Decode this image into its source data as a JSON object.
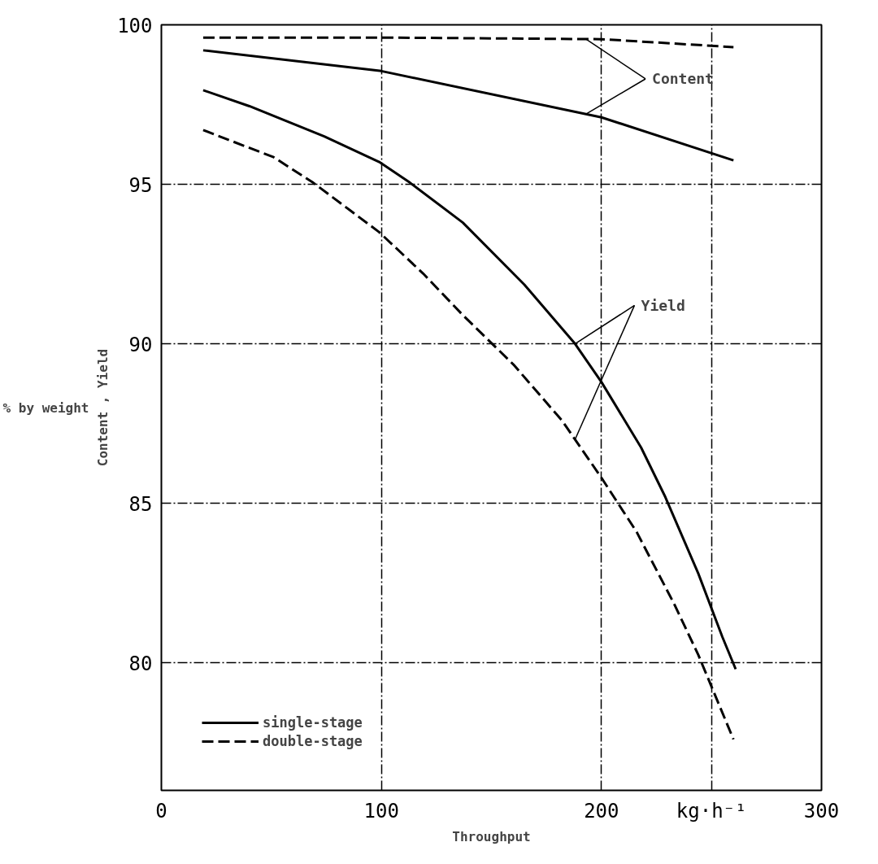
{
  "chart_data": {
    "type": "line",
    "xlabel": "Throughput",
    "ylabel": "Content , Yield",
    "xlim": [
      0,
      300
    ],
    "ylim": [
      76,
      100
    ],
    "xticks": [
      0,
      100,
      200,
      {
        "value": 250,
        "label": "kg·h⁻¹"
      },
      300
    ],
    "yticks": [
      80,
      85,
      90,
      95,
      100
    ],
    "grid": true,
    "legend": "bottom left",
    "annotations": [
      "% by weight",
      {
        "text": "Content",
        "x": 193,
        "y": 97.2
      },
      {
        "text": "Yield",
        "x": 188,
        "y": 87.1
      }
    ],
    "series": [
      {
        "name": "single-stage",
        "color": "#000000",
        "line_style": "solid",
        "x": [
          19,
          100,
          200,
          260
        ],
        "values": [
          99.2,
          98.55,
          97.1,
          95.75
        ]
      },
      {
        "name": "double-stage",
        "color": "#000000",
        "line_style": "dashed",
        "x": [
          19,
          100,
          200,
          260
        ],
        "values": [
          99.6,
          99.6,
          99.55,
          99.3
        ]
      },
      {
        "color": "#000000",
        "line_style": "solid",
        "x": [
          19,
          40,
          74,
          99,
          113,
          137,
          165,
          188,
          200,
          218,
          229,
          244,
          255,
          261
        ],
        "values": [
          97.95,
          97.45,
          96.5,
          95.7,
          95.05,
          93.8,
          91.85,
          90.0,
          88.8,
          86.75,
          85.2,
          82.8,
          80.8,
          79.8
        ]
      },
      {
        "color": "#000000",
        "line_style": "dashed",
        "x": [
          19,
          51,
          69,
          99,
          119,
          137,
          160,
          182,
          200,
          216,
          233,
          244,
          260
        ],
        "values": [
          96.7,
          95.85,
          95.05,
          93.5,
          92.2,
          90.9,
          89.35,
          87.6,
          85.8,
          84.1,
          81.85,
          80.25,
          77.6
        ]
      }
    ]
  }
}
